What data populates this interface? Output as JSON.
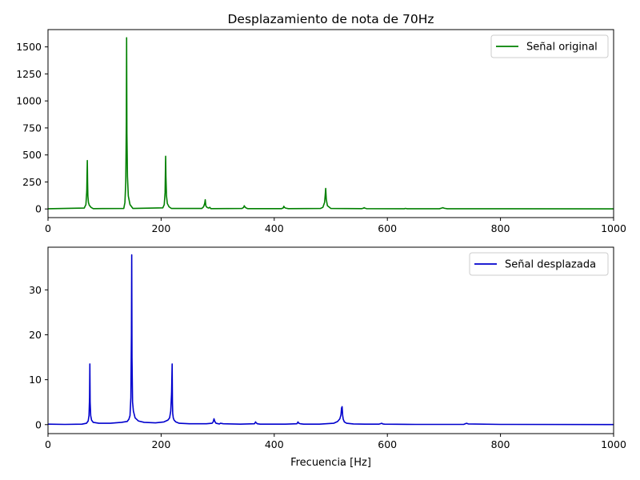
{
  "chart_data": [
    {
      "type": "line",
      "title": "Desplazamiento de nota de 70Hz",
      "xlabel": "",
      "ylabel": "",
      "xlim": [
        0,
        1000
      ],
      "ylim": [
        -80,
        1660
      ],
      "x_ticks": [
        0,
        200,
        400,
        600,
        800,
        1000
      ],
      "y_ticks": [
        0,
        250,
        500,
        750,
        1000,
        1250,
        1500
      ],
      "grid": false,
      "legend": "top-right",
      "series": [
        {
          "name": "Señal original",
          "color": "#008000",
          "x": [
            0,
            64,
            67,
            68.5,
            69.5,
            70,
            70.5,
            71.5,
            73,
            76,
            80,
            134,
            136,
            137.5,
            138.5,
            139,
            139.5,
            140.5,
            142,
            145,
            150,
            203,
            205.5,
            207,
            208,
            208.5,
            209.5,
            211,
            214,
            218,
            272,
            275,
            277,
            278,
            279,
            281,
            284,
            286,
            288,
            343,
            346,
            347,
            348,
            350,
            353,
            413,
            416,
            417,
            418,
            420,
            425,
            482,
            486,
            489,
            490,
            491,
            492,
            494,
            500,
            555,
            558,
            559,
            560,
            563,
            630,
            632,
            635,
            692,
            696,
            698,
            701,
            706,
            1000
          ],
          "y": [
            2,
            8,
            40,
            160,
            448,
            250,
            120,
            60,
            35,
            15,
            3,
            5,
            60,
            250,
            800,
            1585,
            700,
            300,
            120,
            40,
            5,
            10,
            40,
            150,
            488,
            300,
            120,
            50,
            20,
            5,
            5,
            20,
            50,
            85,
            30,
            15,
            8,
            15,
            3,
            5,
            15,
            30,
            20,
            10,
            3,
            3,
            10,
            25,
            15,
            8,
            3,
            5,
            15,
            60,
            120,
            190,
            90,
            30,
            5,
            3,
            8,
            12,
            8,
            3,
            2,
            5,
            2,
            2,
            8,
            12,
            6,
            2,
            1
          ]
        }
      ]
    },
    {
      "type": "line",
      "title": "",
      "xlabel": "Frecuencia [Hz]",
      "ylabel": "",
      "xlim": [
        0,
        1000
      ],
      "ylim": [
        -2,
        39.5
      ],
      "x_ticks": [
        0,
        200,
        400,
        600,
        800,
        1000
      ],
      "y_ticks": [
        0,
        10,
        20,
        30
      ],
      "grid": false,
      "legend": "top-right",
      "series": [
        {
          "name": "Señal desplazada",
          "color": "#0000cd",
          "x": [
            0,
            30,
            60,
            68,
            71,
            72.5,
            73.5,
            74,
            74.5,
            75.5,
            77,
            80,
            90,
            110,
            130,
            140,
            143,
            145,
            146.5,
            147.5,
            148,
            148.5,
            149.5,
            151,
            154,
            160,
            170,
            190,
            205,
            212,
            215,
            217,
            218.5,
            219.5,
            220,
            220.5,
            221.5,
            223,
            226,
            232,
            250,
            280,
            290,
            292,
            293.5,
            295,
            297,
            303,
            305,
            310,
            340,
            365,
            367,
            368,
            370,
            375,
            420,
            440,
            442,
            443.5,
            446,
            452,
            480,
            505,
            512,
            516,
            518,
            519,
            520,
            521,
            522,
            524,
            528,
            540,
            560,
            585,
            590,
            592,
            595,
            650,
            735,
            738,
            740,
            743,
            800,
            1000
          ],
          "y": [
            0.1,
            0.05,
            0.1,
            0.3,
            0.8,
            2,
            6,
            13.5,
            5,
            2,
            1,
            0.5,
            0.3,
            0.3,
            0.5,
            0.7,
            1.2,
            2,
            6,
            20,
            37.8,
            15,
            5,
            3,
            1.5,
            0.8,
            0.5,
            0.4,
            0.6,
            1,
            1.5,
            3,
            7,
            13.5,
            5,
            2.5,
            1.5,
            1,
            0.6,
            0.3,
            0.2,
            0.2,
            0.3,
            0.6,
            1.3,
            0.7,
            0.3,
            0.15,
            0.3,
            0.2,
            0.1,
            0.2,
            0.6,
            0.4,
            0.2,
            0.1,
            0.1,
            0.2,
            0.6,
            0.3,
            0.2,
            0.1,
            0.1,
            0.3,
            0.7,
            1.3,
            2.2,
            3.7,
            4,
            2,
            1.2,
            0.6,
            0.3,
            0.15,
            0.1,
            0.1,
            0.3,
            0.15,
            0.1,
            0.05,
            0.05,
            0.2,
            0.3,
            0.15,
            0.05,
            0.02
          ]
        }
      ]
    }
  ]
}
